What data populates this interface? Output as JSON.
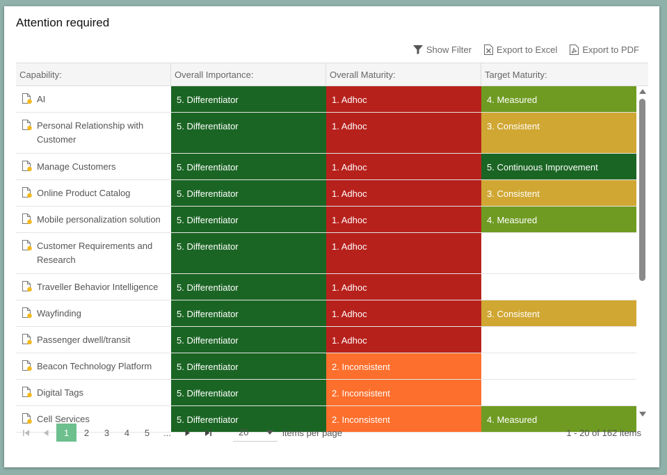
{
  "title": "Attention required",
  "toolbar": {
    "show_filter": "Show Filter",
    "export_excel": "Export to Excel",
    "export_pdf": "Export to PDF"
  },
  "columns": [
    "Capability:",
    "Overall Importance:",
    "Overall Maturity:",
    "Target Maturity:"
  ],
  "level_colors": {
    "5": "#1b6524",
    "4": "#6f9b22",
    "3": "#d0a733",
    "2": "#fd6f2c",
    "1": "#b7211c",
    "none": "#ffffff"
  },
  "rows": [
    {
      "capability": "AI",
      "importance": "5. Differentiator",
      "imp_level": "5",
      "maturity": "1. Adhoc",
      "mat_level": "1",
      "target": "4. Measured",
      "tgt_level": "4"
    },
    {
      "capability": "Personal Relationship with Customer",
      "importance": "5. Differentiator",
      "imp_level": "5",
      "maturity": "1. Adhoc",
      "mat_level": "1",
      "target": "3. Consistent",
      "tgt_level": "3"
    },
    {
      "capability": "Manage Customers",
      "importance": "5. Differentiator",
      "imp_level": "5",
      "maturity": "1. Adhoc",
      "mat_level": "1",
      "target": "5. Continuous Improvement",
      "tgt_level": "5"
    },
    {
      "capability": "Online Product Catalog",
      "importance": "5. Differentiator",
      "imp_level": "5",
      "maturity": "1. Adhoc",
      "mat_level": "1",
      "target": "3. Consistent",
      "tgt_level": "3"
    },
    {
      "capability": "Mobile personalization solution",
      "importance": "5. Differentiator",
      "imp_level": "5",
      "maturity": "1. Adhoc",
      "mat_level": "1",
      "target": "4. Measured",
      "tgt_level": "4"
    },
    {
      "capability": "Customer Requirements and Research",
      "importance": "5. Differentiator",
      "imp_level": "5",
      "maturity": "1. Adhoc",
      "mat_level": "1",
      "target": "",
      "tgt_level": "none"
    },
    {
      "capability": "Traveller Behavior Intelligence",
      "importance": "5. Differentiator",
      "imp_level": "5",
      "maturity": "1. Adhoc",
      "mat_level": "1",
      "target": "",
      "tgt_level": "none"
    },
    {
      "capability": "Wayfinding",
      "importance": "5. Differentiator",
      "imp_level": "5",
      "maturity": "1. Adhoc",
      "mat_level": "1",
      "target": "3. Consistent",
      "tgt_level": "3"
    },
    {
      "capability": "Passenger dwell/transit",
      "importance": "5. Differentiator",
      "imp_level": "5",
      "maturity": "1. Adhoc",
      "mat_level": "1",
      "target": "",
      "tgt_level": "none"
    },
    {
      "capability": "Beacon Technology Platform",
      "importance": "5. Differentiator",
      "imp_level": "5",
      "maturity": "2. Inconsistent",
      "mat_level": "2",
      "target": "",
      "tgt_level": "none"
    },
    {
      "capability": "Digital Tags",
      "importance": "5. Differentiator",
      "imp_level": "5",
      "maturity": "2. Inconsistent",
      "mat_level": "2",
      "target": "",
      "tgt_level": "none"
    },
    {
      "capability": "Cell Services",
      "importance": "5. Differentiator",
      "imp_level": "5",
      "maturity": "2. Inconsistent",
      "mat_level": "2",
      "target": "4. Measured",
      "tgt_level": "4"
    }
  ],
  "pager": {
    "pages": [
      "1",
      "2",
      "3",
      "4",
      "5",
      "..."
    ],
    "current": "1",
    "page_size": "20",
    "items_per_page_label": "items per page",
    "info": "1 - 20 of 162 items"
  }
}
